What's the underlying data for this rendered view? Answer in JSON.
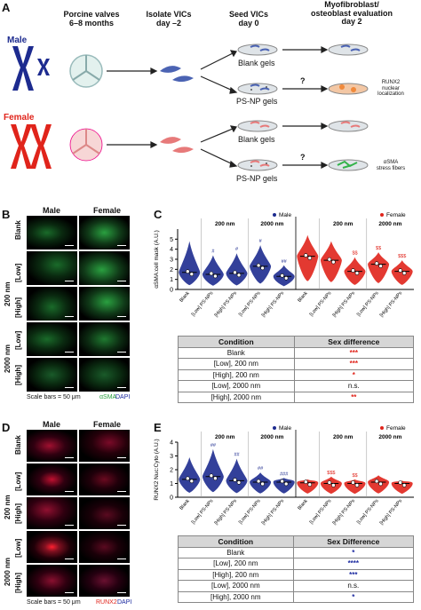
{
  "panel_a": {
    "label": "A",
    "headers": {
      "valves": "Porcine valves\n6–8 months",
      "isolate": "Isolate VICs\nday –2",
      "seed": "Seed VICs\nday 0",
      "eval": "Myofibroblast/\nosteoblast evaluation\nday 2"
    },
    "male": "Male",
    "female": "Female",
    "blank_gels_1": "Blank gels",
    "psnp_gels_1": "PS-NP gels",
    "blank_gels_2": "Blank gels",
    "psnp_gels_2": "PS-NP gels",
    "question_1": "?",
    "question_2": "?",
    "runx2_note": "RUNX2\nnuclear\nlocalization",
    "asma_note": "αSMA\nstress fibers",
    "colors": {
      "male": "#1d2b8f",
      "female": "#e0241b",
      "gel": "#cfd8dc"
    }
  },
  "panel_b": {
    "label": "B",
    "col_male": "Male",
    "col_female": "Female",
    "rows": [
      "Blank",
      "[Low]",
      "[High]",
      "[Low]",
      "[High]"
    ],
    "groups": [
      "200 nm",
      "2000 nm"
    ],
    "scale": "Scale bars = 50 μm",
    "stain_a": "αSMA",
    "stain_b": "DAPI"
  },
  "panel_c": {
    "label": "C",
    "legend_male": "Male",
    "legend_female": "Female",
    "table": {
      "header": [
        "Condition",
        "Sex difference"
      ],
      "rows": [
        [
          "Blank",
          "***"
        ],
        [
          "[Low], 200 nm",
          "***"
        ],
        [
          "[High], 200 nm",
          "*"
        ],
        [
          "[Low], 2000 nm",
          "n.s."
        ],
        [
          "[High], 2000 nm",
          "**"
        ]
      ]
    }
  },
  "panel_d": {
    "label": "D",
    "col_male": "Male",
    "col_female": "Female",
    "rows": [
      "Blank",
      "[Low]",
      "[High]",
      "[Low]",
      "[High]"
    ],
    "groups": [
      "200 nm",
      "2000 nm"
    ],
    "scale": "Scale bars = 50 μm",
    "stain_a": "RUNX2",
    "stain_b": "DAPI"
  },
  "panel_e": {
    "label": "E",
    "legend_male": "Male",
    "legend_female": "Female",
    "table": {
      "header": [
        "Condition",
        "Sex Difference"
      ],
      "rows": [
        [
          "Blank",
          "*"
        ],
        [
          "[Low], 200 nm",
          "****"
        ],
        [
          "[High], 200 nm",
          "***"
        ],
        [
          "[Low], 2000 nm",
          "n.s."
        ],
        [
          "[High], 2000 nm",
          "*"
        ]
      ]
    }
  },
  "chart_data": [
    {
      "type": "violin",
      "panel": "C",
      "ylabel": "αSMA:cell mask (A.U.)",
      "ylim": [
        0,
        6
      ],
      "yticks": [
        0,
        1,
        2,
        3,
        4,
        5
      ],
      "categories": [
        "Blank",
        "[Low] PS-NPs",
        "[High] PS-NPs",
        "[Low] PS-NPs",
        "[High] PS-NPs"
      ],
      "size_groups": [
        "200 nm",
        "2000 nm"
      ],
      "series": [
        {
          "name": "Male",
          "color": "#1d2b8f",
          "medians": [
            1.7,
            1.5,
            1.6,
            2.3,
            1.3
          ],
          "maxes": [
            4.8,
            3.4,
            3.6,
            4.4,
            2.4
          ],
          "annotations": [
            "",
            "#",
            "#",
            "#",
            "##"
          ]
        },
        {
          "name": "Female",
          "color": "#e0241b",
          "medians": [
            3.3,
            2.9,
            1.8,
            2.5,
            1.8
          ],
          "maxes": [
            5.4,
            4.8,
            3.2,
            3.7,
            2.9
          ],
          "annotations": [
            "",
            "",
            "$$",
            "$$",
            "$$$"
          ]
        }
      ]
    },
    {
      "type": "violin",
      "panel": "E",
      "ylabel": "RUNX2 Nuc:Cyto (A.U.)",
      "ylim": [
        0,
        4
      ],
      "yticks": [
        0,
        1,
        2,
        3,
        4
      ],
      "categories": [
        "Blank",
        "[Low] PS-NPs",
        "[High] PS-NPs",
        "[Low] PS-NPs",
        "[High] PS-NPs"
      ],
      "size_groups": [
        "200 nm",
        "2000 nm"
      ],
      "series": [
        {
          "name": "Male",
          "color": "#1d2b8f",
          "medians": [
            1.3,
            1.5,
            1.2,
            1.1,
            1.1
          ],
          "maxes": [
            2.9,
            3.5,
            2.8,
            1.8,
            1.4
          ],
          "annotations": [
            "",
            "##",
            "##",
            "##",
            "###"
          ]
        },
        {
          "name": "Female",
          "color": "#e0241b",
          "medians": [
            1.05,
            1.0,
            1.0,
            1.1,
            1.0
          ],
          "maxes": [
            1.3,
            1.5,
            1.3,
            1.6,
            1.2
          ],
          "annotations": [
            "",
            "$$$",
            "$$",
            "",
            ""
          ]
        }
      ]
    }
  ]
}
